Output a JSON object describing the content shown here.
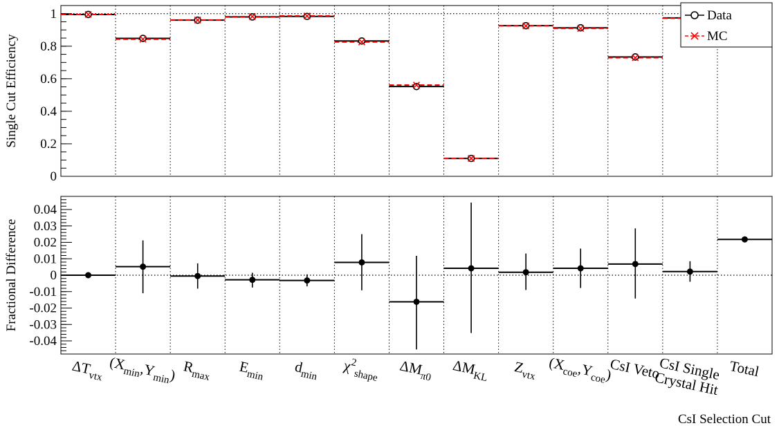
{
  "chart_data": [
    {
      "type": "scatter",
      "panel": "top",
      "ylabel": "Single Cut Efficiency",
      "ylim": [
        0,
        1.05
      ],
      "yticks": [
        {
          "v": 0,
          "label": "0"
        },
        {
          "v": 0.2,
          "label": "0.2"
        },
        {
          "v": 0.4,
          "label": "0.4"
        },
        {
          "v": 0.6,
          "label": "0.6"
        },
        {
          "v": 0.8,
          "label": "0.8"
        },
        {
          "v": 1,
          "label": "1"
        }
      ],
      "reference_line": 1,
      "legend": {
        "placement": "top-right",
        "entries": [
          {
            "label": "Data",
            "marker": "open-circle",
            "color": "#000000"
          },
          {
            "label": "MC",
            "marker": "cross",
            "color": "#ff0000"
          }
        ]
      },
      "series": [
        {
          "name": "Data",
          "color": "#000000",
          "values": [
            0.995,
            0.848,
            0.96,
            0.98,
            0.983,
            0.832,
            0.552,
            0.11,
            0.926,
            0.913,
            0.734,
            0.974
          ]
        },
        {
          "name": "MC",
          "color": "#ff0000",
          "values": [
            0.995,
            0.843,
            0.961,
            0.982,
            0.986,
            0.826,
            0.561,
            0.11,
            0.925,
            0.909,
            0.729,
            0.972
          ]
        }
      ]
    },
    {
      "type": "scatter",
      "panel": "bottom",
      "ylabel": "Fractional Difference",
      "xlabel": "CsI Selection Cut",
      "ylim": [
        -0.048,
        0.048
      ],
      "yticks": [
        {
          "v": -0.04,
          "label": "-0.04"
        },
        {
          "v": -0.03,
          "label": "-0.03"
        },
        {
          "v": -0.02,
          "label": "-0.02"
        },
        {
          "v": -0.01,
          "label": "-0.01"
        },
        {
          "v": 0,
          "label": "0"
        },
        {
          "v": 0.01,
          "label": "0.01"
        },
        {
          "v": 0.02,
          "label": "0.02"
        },
        {
          "v": 0.03,
          "label": "0.03"
        },
        {
          "v": 0.04,
          "label": "0.04"
        }
      ],
      "reference_line": 0,
      "values": [
        0.0,
        0.0052,
        -0.0005,
        -0.0028,
        -0.0032,
        0.0078,
        -0.0162,
        0.0042,
        0.0018,
        0.0042,
        0.0068,
        0.0022,
        0.0218
      ],
      "error_low": [
        0.0,
        -0.011,
        -0.0082,
        -0.0075,
        -0.0068,
        -0.0092,
        -0.0452,
        -0.0352,
        -0.009,
        -0.0078,
        -0.0142,
        -0.004,
        0.0218
      ],
      "error_high": [
        0.0,
        0.0212,
        0.0072,
        0.0015,
        0.0005,
        0.025,
        0.0118,
        0.0442,
        0.0132,
        0.0162,
        0.0285,
        0.0085,
        0.0218
      ]
    }
  ],
  "categories": [
    {
      "base": "ΔT",
      "sub": "vtx"
    },
    {
      "base": "(X",
      "sub": "min",
      "mid": ",Y",
      "sub2": "min",
      "tail": ")"
    },
    {
      "base": "R",
      "sub": "max"
    },
    {
      "base": "E",
      "sub": "min"
    },
    {
      "base": "d",
      "sub": "min"
    },
    {
      "base": "χ",
      "sup": "2",
      "sub": "shape"
    },
    {
      "base": "ΔM",
      "sub": "π0"
    },
    {
      "base": "ΔM",
      "sub": "KL"
    },
    {
      "base": "Z",
      "sub": "vtx"
    },
    {
      "base": "(X",
      "sub": "coe",
      "mid": ",Y",
      "sub2": "coe",
      "tail": ")"
    },
    {
      "base": "CsI Veto"
    },
    {
      "lines": [
        "CsI Single",
        "Crystal Hit"
      ]
    },
    {
      "base": "Total"
    }
  ]
}
